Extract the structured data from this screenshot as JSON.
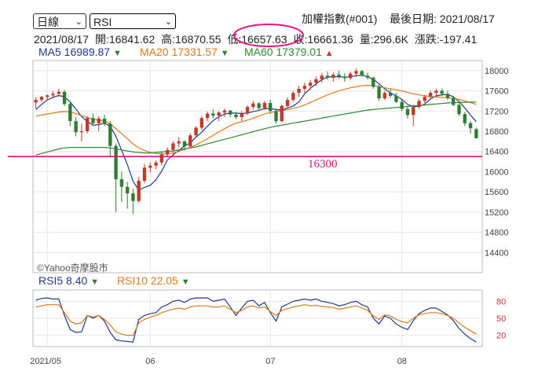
{
  "controls": {
    "period_select": "日線",
    "indicator_select": "RSI"
  },
  "header": {
    "title": "加權指數(#001)",
    "last_date": "最後日期: 2021/08/17"
  },
  "quote": {
    "date": "2021/08/17",
    "open": "開:16841.62",
    "high": "高:16870.55",
    "low": "低:16657.63",
    "close": "收:16661.36",
    "volume": "量:296.6K",
    "change": "漲跌:-197.41"
  },
  "ma_legend": [
    {
      "label": "MA5 16989.87",
      "color": "#1f3a8f",
      "dir": "▼"
    },
    {
      "label": "MA20 17331.57",
      "color": "#e07b18",
      "dir": "▼"
    },
    {
      "label": "MA60 17379.01",
      "color": "#2e8b2e",
      "dir": "▲"
    }
  ],
  "rsi_legend": [
    {
      "label": "RSI5 8.40",
      "color": "#1f3a8f",
      "dir": "▼"
    },
    {
      "label": "RSI10 22.05",
      "color": "#e07b18",
      "dir": "▼"
    }
  ],
  "watermark": "©Yahoo奇摩股市",
  "annotation": {
    "label": "16300",
    "value": 16300,
    "color": "#d4157a"
  },
  "colors": {
    "up": "#c0392b",
    "down": "#2e7d32",
    "grid": "#e6e6e6"
  },
  "chart_data": [
    {
      "type": "candlestick",
      "title": "加權指數(#001) 日線",
      "ylim": [
        14000,
        18200
      ],
      "y_ticks": [
        14400,
        14800,
        15200,
        15600,
        16000,
        16400,
        16800,
        17200,
        17600,
        18000
      ],
      "x_tick_labels": [
        "2021/05",
        "06",
        "07",
        "08"
      ],
      "x_tick_index": [
        2,
        20,
        41,
        64
      ],
      "ohlc": [
        [
          17370,
          17470,
          17250,
          17420
        ],
        [
          17420,
          17500,
          17380,
          17480
        ],
        [
          17480,
          17530,
          17420,
          17510
        ],
        [
          17510,
          17590,
          17450,
          17540
        ],
        [
          17540,
          17640,
          17480,
          17580
        ],
        [
          17580,
          17620,
          17300,
          17340
        ],
        [
          17340,
          17390,
          16900,
          17000
        ],
        [
          17000,
          17080,
          16700,
          16780
        ],
        [
          16780,
          16950,
          16600,
          16800
        ],
        [
          16800,
          17100,
          16760,
          17060
        ],
        [
          17060,
          17150,
          16900,
          16960
        ],
        [
          16960,
          17100,
          16800,
          17050
        ],
        [
          17050,
          17130,
          16900,
          16950
        ],
        [
          16950,
          17000,
          16300,
          16510
        ],
        [
          16510,
          16560,
          15200,
          15850
        ],
        [
          15850,
          16000,
          15400,
          15700
        ],
        [
          15700,
          15800,
          15270,
          15570
        ],
        [
          15570,
          15660,
          15160,
          15420
        ],
        [
          15420,
          15900,
          15380,
          15820
        ],
        [
          15820,
          16150,
          15780,
          16080
        ],
        [
          16080,
          16180,
          15990,
          16120
        ],
        [
          16120,
          16220,
          16050,
          16180
        ],
        [
          16180,
          16380,
          16120,
          16340
        ],
        [
          16340,
          16480,
          16300,
          16430
        ],
        [
          16430,
          16600,
          16350,
          16560
        ],
        [
          16560,
          16680,
          16480,
          16600
        ],
        [
          16600,
          16620,
          16420,
          16500
        ],
        [
          16500,
          16760,
          16470,
          16720
        ],
        [
          16720,
          16900,
          16680,
          16870
        ],
        [
          16870,
          17100,
          16820,
          17060
        ],
        [
          17060,
          17190,
          17000,
          17150
        ],
        [
          17150,
          17230,
          17050,
          17110
        ],
        [
          17110,
          17200,
          17000,
          17170
        ],
        [
          17170,
          17250,
          17080,
          17210
        ],
        [
          17210,
          17220,
          17080,
          17130
        ],
        [
          17130,
          17180,
          17040,
          17080
        ],
        [
          17080,
          17200,
          17000,
          17150
        ],
        [
          17150,
          17310,
          17120,
          17280
        ],
        [
          17280,
          17400,
          17230,
          17350
        ],
        [
          17350,
          17380,
          17200,
          17260
        ],
        [
          17260,
          17400,
          17220,
          17360
        ],
        [
          17360,
          17420,
          17150,
          17200
        ],
        [
          17200,
          17250,
          16950,
          17000
        ],
        [
          17000,
          17330,
          16980,
          17300
        ],
        [
          17300,
          17470,
          17260,
          17420
        ],
        [
          17420,
          17600,
          17380,
          17560
        ],
        [
          17560,
          17700,
          17480,
          17640
        ],
        [
          17640,
          17760,
          17560,
          17700
        ],
        [
          17700,
          17820,
          17620,
          17760
        ],
        [
          17760,
          17880,
          17700,
          17830
        ],
        [
          17830,
          17950,
          17760,
          17900
        ],
        [
          17900,
          17980,
          17820,
          17860
        ],
        [
          17860,
          17960,
          17780,
          17920
        ],
        [
          17920,
          18000,
          17840,
          17880
        ],
        [
          17880,
          17950,
          17780,
          17850
        ],
        [
          17850,
          17980,
          17820,
          17940
        ],
        [
          17940,
          18040,
          17870,
          17990
        ],
        [
          17990,
          18010,
          17880,
          17900
        ],
        [
          17900,
          17960,
          17820,
          17860
        ],
        [
          17860,
          17880,
          17640,
          17680
        ],
        [
          17680,
          17720,
          17400,
          17450
        ],
        [
          17450,
          17600,
          17420,
          17560
        ],
        [
          17560,
          17640,
          17460,
          17500
        ],
        [
          17500,
          17560,
          17360,
          17380
        ],
        [
          17380,
          17420,
          17200,
          17240
        ],
        [
          17240,
          17300,
          17050,
          17120
        ],
        [
          17120,
          17320,
          16900,
          17280
        ],
        [
          17280,
          17440,
          17240,
          17400
        ],
        [
          17400,
          17520,
          17360,
          17480
        ],
        [
          17480,
          17600,
          17440,
          17560
        ],
        [
          17560,
          17640,
          17500,
          17600
        ],
        [
          17600,
          17640,
          17500,
          17540
        ],
        [
          17540,
          17600,
          17420,
          17460
        ],
        [
          17460,
          17500,
          17300,
          17320
        ],
        [
          17320,
          17380,
          17100,
          17140
        ],
        [
          17140,
          17180,
          16900,
          16960
        ],
        [
          16960,
          17000,
          16750,
          16860
        ],
        [
          16841,
          16870,
          16657,
          16661
        ]
      ],
      "series": [
        {
          "name": "MA5",
          "values": [
            17230,
            17330,
            17420,
            17470,
            17510,
            17480,
            17380,
            17240,
            17090,
            16990,
            16920,
            16930,
            16960,
            16900,
            16700,
            16420,
            16140,
            15810,
            15630,
            15690,
            15730,
            15840,
            16010,
            16230,
            16330,
            16420,
            16510,
            16570,
            16680,
            16780,
            16900,
            17010,
            17090,
            17140,
            17160,
            17160,
            17150,
            17160,
            17190,
            17210,
            17250,
            17250,
            17230,
            17220,
            17260,
            17300,
            17380,
            17540,
            17650,
            17740,
            17820,
            17870,
            17880,
            17880,
            17870,
            17880,
            17900,
            17910,
            17880,
            17830,
            17740,
            17640,
            17560,
            17500,
            17430,
            17330,
            17290,
            17290,
            17340,
            17440,
            17500,
            17520,
            17530,
            17480,
            17390,
            17260,
            17120,
            16990
          ]
        },
        {
          "name": "MA20",
          "values": [
            17100,
            17120,
            17140,
            17160,
            17180,
            17190,
            17180,
            17150,
            17110,
            17070,
            17040,
            17020,
            17000,
            16950,
            16850,
            16750,
            16650,
            16550,
            16470,
            16420,
            16380,
            16360,
            16350,
            16350,
            16370,
            16400,
            16440,
            16480,
            16530,
            16590,
            16650,
            16720,
            16790,
            16850,
            16910,
            16960,
            16990,
            17020,
            17060,
            17100,
            17140,
            17170,
            17190,
            17210,
            17230,
            17250,
            17280,
            17320,
            17370,
            17420,
            17470,
            17520,
            17560,
            17600,
            17630,
            17660,
            17680,
            17700,
            17710,
            17700,
            17680,
            17660,
            17640,
            17620,
            17600,
            17570,
            17540,
            17520,
            17500,
            17490,
            17480,
            17470,
            17460,
            17450,
            17430,
            17400,
            17370,
            17330
          ]
        },
        {
          "name": "MA60",
          "values": [
            16330,
            16360,
            16390,
            16420,
            16450,
            16470,
            16480,
            16480,
            16480,
            16480,
            16480,
            16480,
            16480,
            16470,
            16450,
            16430,
            16410,
            16390,
            16380,
            16370,
            16370,
            16380,
            16390,
            16400,
            16410,
            16430,
            16450,
            16470,
            16490,
            16520,
            16550,
            16580,
            16610,
            16640,
            16670,
            16700,
            16730,
            16760,
            16790,
            16820,
            16850,
            16880,
            16900,
            16920,
            16940,
            16960,
            16980,
            17000,
            17020,
            17040,
            17060,
            17080,
            17100,
            17120,
            17140,
            17160,
            17180,
            17200,
            17220,
            17230,
            17240,
            17250,
            17260,
            17270,
            17280,
            17290,
            17300,
            17310,
            17320,
            17330,
            17340,
            17350,
            17360,
            17365,
            17370,
            17374,
            17377,
            17379
          ]
        }
      ]
    },
    {
      "type": "line",
      "title": "RSI",
      "ylim": [
        0,
        100
      ],
      "y_ticks": [
        20,
        50,
        80
      ],
      "series": [
        {
          "name": "RSI5",
          "values": [
            82,
            85,
            86,
            84,
            84,
            55,
            30,
            25,
            26,
            55,
            50,
            55,
            45,
            25,
            12,
            10,
            9,
            8,
            48,
            55,
            58,
            60,
            70,
            74,
            80,
            82,
            78,
            84,
            86,
            86,
            86,
            80,
            82,
            84,
            70,
            55,
            68,
            80,
            82,
            72,
            78,
            60,
            45,
            70,
            75,
            80,
            82,
            84,
            82,
            84,
            80,
            78,
            76,
            72,
            74,
            78,
            80,
            74,
            70,
            50,
            40,
            54,
            50,
            40,
            34,
            30,
            46,
            58,
            64,
            68,
            68,
            62,
            56,
            46,
            32,
            22,
            14,
            8
          ]
        },
        {
          "name": "RSI10",
          "values": [
            70,
            72,
            74,
            74,
            74,
            60,
            45,
            40,
            42,
            55,
            52,
            55,
            48,
            38,
            26,
            22,
            20,
            20,
            42,
            48,
            52,
            55,
            60,
            63,
            66,
            68,
            66,
            70,
            72,
            72,
            72,
            70,
            70,
            72,
            66,
            60,
            64,
            70,
            72,
            68,
            70,
            62,
            55,
            64,
            67,
            70,
            72,
            74,
            72,
            73,
            71,
            70,
            69,
            66,
            68,
            70,
            72,
            68,
            64,
            54,
            48,
            56,
            54,
            48,
            44,
            42,
            50,
            56,
            58,
            60,
            60,
            58,
            55,
            50,
            42,
            34,
            28,
            22
          ]
        }
      ]
    }
  ]
}
